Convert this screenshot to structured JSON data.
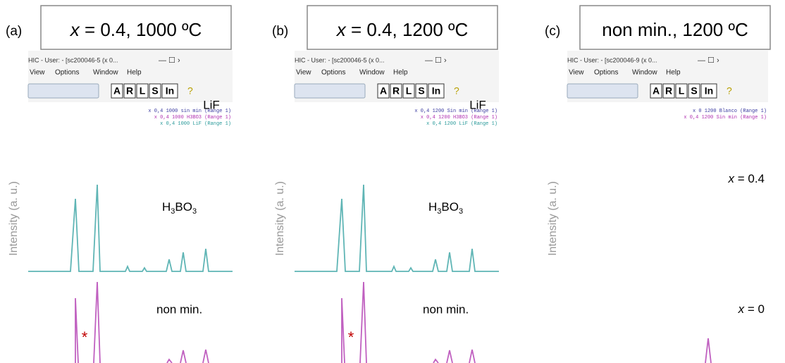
{
  "panels": [
    {
      "letter": "(a)",
      "title_var": "x",
      "title_rest": " = 0.4, 1000 ºC",
      "window_title": "HIC - User: - [sc200046-5 (x 0...",
      "menu": [
        "View",
        "Options",
        "Window",
        "Help"
      ],
      "toolbar": [
        "A",
        "R",
        "L",
        "S",
        "In"
      ],
      "legend": [
        "x 0,4 1000 sin min (Range 1)",
        "x 0,4 1000 H3BO3 (Range 1)",
        "x 0,4 1000 LiF (Range 1)"
      ],
      "y_label": "Intensity (a. u.)",
      "labels": {
        "lif": "LiF",
        "h3bo3": [
          "H",
          "3",
          "BO",
          "3"
        ],
        "non_min": "non min.",
        "star": "*"
      }
    },
    {
      "letter": "(b)",
      "title_var": "x",
      "title_rest": " = 0.4, 1200 ºC",
      "window_title": "HIC - User: - [sc200046-5 (x 0...",
      "menu": [
        "View",
        "Options",
        "Window",
        "Help"
      ],
      "toolbar": [
        "A",
        "R",
        "L",
        "S",
        "In"
      ],
      "legend": [
        "x 0,4 1200 Sin min (Range 1)",
        "x 0,4 1200 H3BO3 (Range 1)",
        "x 0,4 1200 LiF (Range 1)"
      ],
      "y_label": "Intensity (a. u.)",
      "labels": {
        "lif": "LiF",
        "h3bo3": [
          "H",
          "3",
          "BO",
          "3"
        ],
        "non_min": "non min.",
        "star": "*"
      }
    },
    {
      "letter": "(c)",
      "title_rest": "non min., 1200 ºC",
      "window_title": "HIC - User: - [sc200046-9 (x 0...",
      "menu": [
        "View",
        "Options",
        "Window",
        "Help"
      ],
      "toolbar": [
        "A",
        "R",
        "L",
        "S",
        "In"
      ],
      "legend": [
        "x 0 1200 Blanco (Range 1)",
        "x 0,4 1200 Sin min (Range 1)"
      ],
      "y_label": "Intensity (a. u.)",
      "labels": {
        "x04": [
          "x",
          " = 0.4"
        ],
        "x0": [
          "x",
          " = 0"
        ]
      }
    }
  ]
}
